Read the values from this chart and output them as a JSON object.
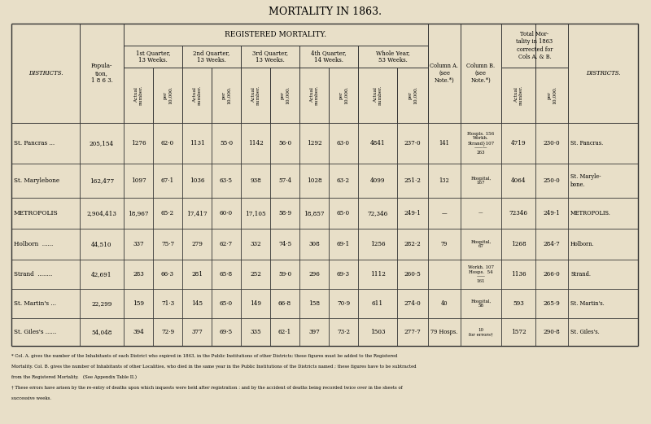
{
  "title": "MORTALITY IN 1863.",
  "bg_color": "#e8dfc8",
  "line_color": "#333333",
  "districts_left": [
    "St. Pancras ...",
    "St. Marylebone",
    "METROPOLIS",
    "Holborn  ......",
    "Strand  ........",
    "St. Martin's ...",
    "St. Giles's ......"
  ],
  "districts_right": [
    "St. Pancras.",
    "St. Maryle-\nbone.",
    "METROPOLIS.",
    "Holborn.",
    "Strand.",
    "St. Martin's.",
    "St. Giles's."
  ],
  "population": [
    "205,154",
    "162,477",
    "2,904,413",
    "44,510",
    "42,691",
    "22,299",
    "54,048"
  ],
  "q1_actual": [
    "1276",
    "1097",
    "18,967",
    "337",
    "283",
    "159",
    "394"
  ],
  "q1_per": [
    "62·0",
    "67·1",
    "65·2",
    "75·7",
    "66·3",
    "71·3",
    "72·9"
  ],
  "q2_actual": [
    "1131",
    "1036",
    "17,417",
    "279",
    "281",
    "145",
    "377"
  ],
  "q2_per": [
    "55·0",
    "63·5",
    "60·0",
    "62·7",
    "65·8",
    "65·0",
    "69·5"
  ],
  "q3_actual": [
    "1142",
    "938",
    "17,105",
    "332",
    "252",
    "149",
    "335"
  ],
  "q3_per": [
    "56·0",
    "57·4",
    "58·9",
    "74·5",
    "59·0",
    "66·8",
    "62·1"
  ],
  "q4_actual": [
    "1292",
    "1028",
    "18,857",
    "308",
    "296",
    "158",
    "397"
  ],
  "q4_per": [
    "63·0",
    "63·2",
    "65·0",
    "69·1",
    "69·3",
    "70·9",
    "73·2"
  ],
  "whole_actual": [
    "4841",
    "4099",
    "72,346",
    "1256",
    "1112",
    "611",
    "1503"
  ],
  "whole_per": [
    "237·0",
    "251·2",
    "249·1",
    "282·2",
    "260·5",
    "274·0",
    "277·7"
  ],
  "col_a": [
    "141",
    "132",
    "—",
    "79",
    "",
    "40",
    "79 Hosps."
  ],
  "col_b": [
    "Hospls. 156\nWorkh.\nStrand}107\n———\n263",
    "Hospital,\n167",
    "—",
    "Hospital,\n67",
    "Workh. 107\nHosps.  54\n——\n161",
    "Hospital,\n58",
    "10\nfor errors†"
  ],
  "total_actual": [
    "4719",
    "4064",
    "72346",
    "1268",
    "1136",
    "593",
    "1572"
  ],
  "total_per": [
    "230·0",
    "250·0",
    "249·1",
    "284·7",
    "266·0",
    "265·9",
    "290·8"
  ],
  "footnotes": [
    "* Col. A. gives the number of the Inhabitants of each District who expired in 1863, in the Public Institutions of other Districts; these figures must be added to the Registered",
    "Mortality. Col. B. gives the number of Inhabitants of other Localities, who died in the same year in the Public Institutions of the Districts named ; these figures have to be subtracted",
    "from the Registered Mortality.   (See Appendix Table II.)",
    "† These errors have arisen by the re-entry of deaths upon which inquests were held after registration : and by the accident of deaths being recorded twice over in the sheets of",
    "successive weeks."
  ]
}
